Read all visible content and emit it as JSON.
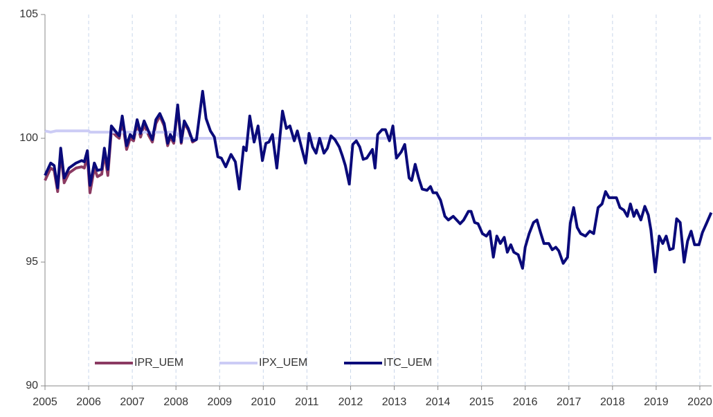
{
  "chart_data": {
    "type": "line",
    "x": [
      2005.0,
      2005.13,
      2005.21,
      2005.29,
      2005.36,
      2005.44,
      2005.55,
      2005.71,
      2005.84,
      2005.9,
      2005.97,
      2006.03,
      2006.13,
      2006.2,
      2006.3,
      2006.36,
      2006.44,
      2006.52,
      2006.63,
      2006.7,
      2006.77,
      2006.87,
      2006.95,
      2007.03,
      2007.11,
      2007.19,
      2007.27,
      2007.38,
      2007.46,
      2007.54,
      2007.63,
      2007.73,
      2007.81,
      2007.87,
      2007.95,
      2008.04,
      2008.12,
      2008.19,
      2008.28,
      2008.38,
      2008.47,
      2008.61,
      2008.69,
      2008.79,
      2008.88,
      2008.96,
      2009.04,
      2009.14,
      2009.26,
      2009.36,
      2009.45,
      2009.55,
      2009.61,
      2009.69,
      2009.79,
      2009.88,
      2009.98,
      2010.06,
      2010.13,
      2010.21,
      2010.31,
      2010.44,
      2010.53,
      2010.61,
      2010.71,
      2010.78,
      2010.88,
      2010.97,
      2011.05,
      2011.13,
      2011.21,
      2011.29,
      2011.39,
      2011.47,
      2011.55,
      2011.64,
      2011.74,
      2011.81,
      2011.88,
      2011.97,
      2012.05,
      2012.13,
      2012.21,
      2012.29,
      2012.37,
      2012.5,
      2012.56,
      2012.62,
      2012.72,
      2012.8,
      2012.89,
      2012.97,
      2013.05,
      2013.16,
      2013.24,
      2013.34,
      2013.4,
      2013.48,
      2013.56,
      2013.64,
      2013.75,
      2013.83,
      2013.89,
      2013.97,
      2014.06,
      2014.16,
      2014.24,
      2014.35,
      2014.43,
      2014.51,
      2014.59,
      2014.7,
      2014.76,
      2014.84,
      2014.92,
      2015.02,
      2015.11,
      2015.19,
      2015.27,
      2015.35,
      2015.43,
      2015.52,
      2015.59,
      2015.67,
      2015.74,
      2015.84,
      2015.94,
      2016.0,
      2016.09,
      2016.19,
      2016.27,
      2016.35,
      2016.43,
      2016.54,
      2016.62,
      2016.7,
      2016.77,
      2016.87,
      2016.97,
      2017.03,
      2017.11,
      2017.19,
      2017.27,
      2017.38,
      2017.48,
      2017.57,
      2017.67,
      2017.76,
      2017.84,
      2017.92,
      2018.01,
      2018.09,
      2018.17,
      2018.26,
      2018.34,
      2018.41,
      2018.49,
      2018.55,
      2018.65,
      2018.74,
      2018.82,
      2018.88,
      2018.98,
      2019.07,
      2019.15,
      2019.23,
      2019.31,
      2019.39,
      2019.47,
      2019.55,
      2019.64,
      2019.72,
      2019.8,
      2019.88,
      2019.98,
      2020.06,
      2020.15,
      2020.26
    ],
    "series": [
      {
        "name": "IPR_UEM",
        "color": "#8b3a62",
        "x": [
          2005.0,
          2005.13,
          2005.21,
          2005.29,
          2005.36,
          2005.44,
          2005.55,
          2005.71,
          2005.84,
          2005.9,
          2005.97,
          2006.03,
          2006.13,
          2006.2,
          2006.3,
          2006.36,
          2006.44,
          2006.52,
          2006.63,
          2006.7,
          2006.77,
          2006.87,
          2006.95,
          2007.03,
          2007.11,
          2007.19,
          2007.27,
          2007.38,
          2007.46,
          2007.54,
          2007.63,
          2007.73,
          2007.81,
          2007.87,
          2007.95,
          2008.04,
          2008.12,
          2008.19,
          2008.28,
          2008.38,
          2008.47
        ],
        "values": [
          98.3,
          98.8,
          98.7,
          97.85,
          99.4,
          98.2,
          98.6,
          98.8,
          98.85,
          98.8,
          99.3,
          97.8,
          98.8,
          98.45,
          98.55,
          99.4,
          98.5,
          100.3,
          100.1,
          100.0,
          100.7,
          99.55,
          100.0,
          99.9,
          100.6,
          100.05,
          100.55,
          100.1,
          99.85,
          100.6,
          100.9,
          100.5,
          99.7,
          100.05,
          99.8,
          101.25,
          99.8,
          100.6,
          100.35,
          99.85,
          99.95
        ]
      },
      {
        "name": "IPX_UEM",
        "color": "#ccccf5",
        "x": [
          2005.0,
          2005.13,
          2005.25,
          2006.0,
          2006.03,
          2008.0,
          2008.1,
          2020.26
        ],
        "values": [
          100.3,
          100.25,
          100.3,
          100.3,
          100.25,
          100.25,
          100.0,
          100.0
        ]
      },
      {
        "name": "ITC_UEM",
        "color": "#0a0a7a",
        "values": [
          98.5,
          99.0,
          98.9,
          98.0,
          99.6,
          98.4,
          98.8,
          99.0,
          99.1,
          99.05,
          99.5,
          98.1,
          99.0,
          98.7,
          98.75,
          99.6,
          98.75,
          100.5,
          100.25,
          100.1,
          100.9,
          99.7,
          100.15,
          100.0,
          100.75,
          100.2,
          100.7,
          100.25,
          99.95,
          100.75,
          101.0,
          100.6,
          99.8,
          100.15,
          99.9,
          101.35,
          99.85,
          100.7,
          100.4,
          99.9,
          99.95,
          101.9,
          100.8,
          100.3,
          100.05,
          99.25,
          99.2,
          98.85,
          99.35,
          99.05,
          97.95,
          99.65,
          99.5,
          100.9,
          99.85,
          100.5,
          99.1,
          99.8,
          99.85,
          100.15,
          98.8,
          101.1,
          100.4,
          100.5,
          99.9,
          100.3,
          99.6,
          99.0,
          100.2,
          99.65,
          99.4,
          100.0,
          99.4,
          99.6,
          100.1,
          99.95,
          99.65,
          99.3,
          98.9,
          98.15,
          99.75,
          99.9,
          99.65,
          99.15,
          99.2,
          99.55,
          98.8,
          100.15,
          100.35,
          100.35,
          99.9,
          100.5,
          99.2,
          99.45,
          99.75,
          98.4,
          98.3,
          98.95,
          98.4,
          97.95,
          97.9,
          98.05,
          97.8,
          97.8,
          97.5,
          96.85,
          96.7,
          96.85,
          96.7,
          96.55,
          96.7,
          97.05,
          97.05,
          96.6,
          96.55,
          96.15,
          96.05,
          96.25,
          95.2,
          96.05,
          95.75,
          96.0,
          95.4,
          95.7,
          95.4,
          95.3,
          94.75,
          95.6,
          96.15,
          96.6,
          96.7,
          96.2,
          95.75,
          95.75,
          95.5,
          95.6,
          95.45,
          94.95,
          95.2,
          96.55,
          97.2,
          96.4,
          96.15,
          96.05,
          96.25,
          96.15,
          97.2,
          97.35,
          97.85,
          97.6,
          97.6,
          97.6,
          97.2,
          97.1,
          96.85,
          97.35,
          96.85,
          97.1,
          96.7,
          97.25,
          96.9,
          96.3,
          94.6,
          96.05,
          95.75,
          96.05,
          95.5,
          95.55,
          96.75,
          96.6,
          95.0,
          95.85,
          96.25,
          95.7,
          95.7,
          96.2,
          96.55,
          97.0
        ]
      }
    ],
    "xlim": [
      2005,
      2020.27
    ],
    "xticks": [
      2005,
      2006,
      2007,
      2008,
      2009,
      2010,
      2011,
      2012,
      2013,
      2014,
      2015,
      2016,
      2017,
      2018,
      2019,
      2020
    ],
    "ylim": [
      90,
      105
    ],
    "yticks": [
      90,
      95,
      100,
      105
    ],
    "grid": true,
    "legend": "lower left"
  }
}
